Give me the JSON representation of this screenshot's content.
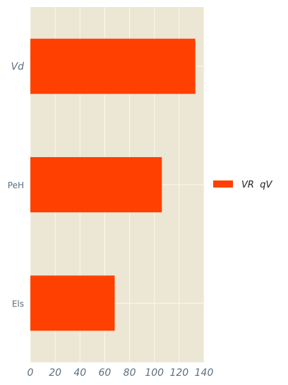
{
  "chart_data": {
    "type": "bar",
    "orientation": "horizontal",
    "categories": [
      "Vd",
      "PeH",
      "Els"
    ],
    "series": [
      {
        "name": "VR  qV",
        "values": [
          133,
          106,
          68
        ]
      }
    ],
    "xlim": [
      0,
      140
    ],
    "xticks": [
      "0",
      "20",
      "40",
      "60",
      "80",
      "100",
      "120",
      "140"
    ],
    "grid": true,
    "legend_position": "right",
    "colors": {
      "bar": "#ff4000",
      "plot_background": "#ece6d4",
      "grid": "#fbf8f0",
      "tick_text": "#5c6f7e"
    }
  }
}
